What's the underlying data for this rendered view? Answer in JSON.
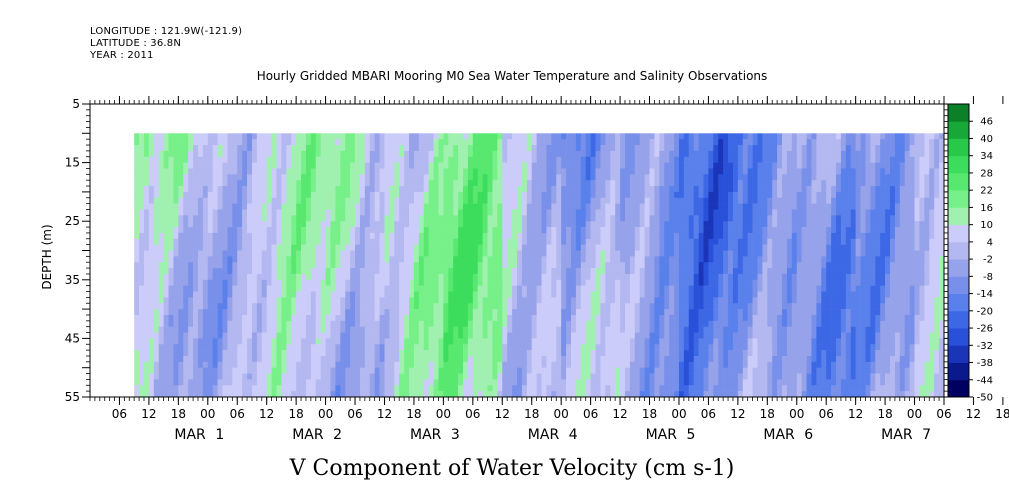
{
  "header": {
    "longitude": "LONGITUDE : 121.9W(-121.9)",
    "latitude": "LATITUDE : 36.8N",
    "year": "YEAR : 2011"
  },
  "chart_data": {
    "type": "heatmap",
    "title": "Hourly Gridded MBARI Mooring M0 Sea Water Temperature and Salinity Observations",
    "xlabel": "V Component of Water Velocity (cm s-1)",
    "ylabel": "DEPTH (m)",
    "y_range": [
      5,
      55
    ],
    "y_inverted": true,
    "y_ticks": [
      5,
      15,
      25,
      35,
      45,
      55
    ],
    "data_depth_range": [
      10,
      55
    ],
    "x_range": [
      "2011-02-28T00:00",
      "2011-03-07T06:00"
    ],
    "data_time_range": [
      "2011-02-28T09:00",
      "2011-03-07T06:00"
    ],
    "x_hour_ticks": [
      "06",
      "12",
      "18",
      "00",
      "06",
      "12",
      "18",
      "00",
      "06",
      "12",
      "18",
      "00",
      "06",
      "12",
      "18",
      "00",
      "06",
      "12",
      "18",
      "00",
      "06",
      "12",
      "18",
      "00",
      "06",
      "12",
      "18",
      "00",
      "06",
      "12",
      "18",
      "00"
    ],
    "x_day_labels": [
      {
        "month": "MAR",
        "day": "1"
      },
      {
        "month": "MAR",
        "day": "2"
      },
      {
        "month": "MAR",
        "day": "3"
      },
      {
        "month": "MAR",
        "day": "4"
      },
      {
        "month": "MAR",
        "day": "5"
      },
      {
        "month": "MAR",
        "day": "6"
      },
      {
        "month": "MAR",
        "day": "7"
      }
    ],
    "colorbar": {
      "levels": [
        -50,
        -44,
        -38,
        -32,
        -26,
        -20,
        -14,
        -8,
        -2,
        4,
        10,
        16,
        22,
        28,
        34,
        40,
        46
      ],
      "min": -50,
      "max": 52,
      "step": 6,
      "colors_low_to_high": [
        "#000060",
        "#0a1a8c",
        "#1a35b8",
        "#2850d8",
        "#3c68e6",
        "#5a80ec",
        "#7890ea",
        "#96a2ea",
        "#b4b8f0",
        "#ccccfa",
        "#a0f0b0",
        "#78f08a",
        "#58e870",
        "#3cdc5c",
        "#28c848",
        "#18a838",
        "#0c8028"
      ]
    },
    "mean_v_by_day": [
      {
        "day": "MAR 1",
        "mean_v": 4
      },
      {
        "day": "MAR 2",
        "mean_v": 6
      },
      {
        "day": "MAR 3",
        "mean_v": 14
      },
      {
        "day": "MAR 4",
        "mean_v": -4
      },
      {
        "day": "MAR 5",
        "mean_v": -14
      },
      {
        "day": "MAR 6",
        "mean_v": -10
      },
      {
        "day": "MAR 7",
        "mean_v": 0
      }
    ]
  }
}
